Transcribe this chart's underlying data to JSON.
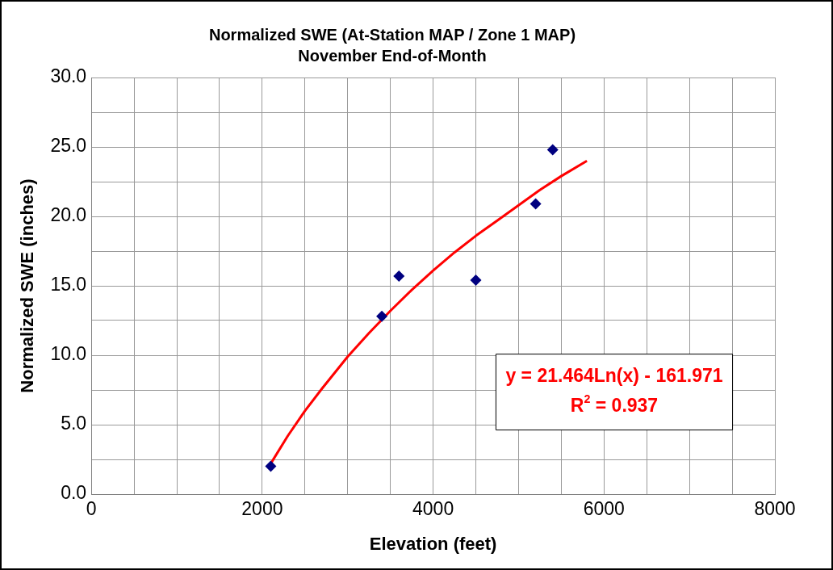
{
  "chart_data": {
    "type": "scatter",
    "title": "Normalized SWE (At-Station MAP / Zone 1 MAP)",
    "subtitle": "November End-of-Month",
    "xlabel": "Elevation (feet)",
    "ylabel": "Normalized SWE (inches)",
    "series": [
      {
        "color": "#000080",
        "marker": "diamond",
        "x": [
          2100,
          3400,
          3600,
          4500,
          5200,
          5400
        ],
        "values": [
          2.0,
          12.8,
          15.7,
          15.4,
          20.9,
          24.8
        ]
      },
      {
        "type": "line",
        "color": "#ff0000",
        "marker": "none",
        "line_style": "solid",
        "x": [
          2100,
          2300,
          2500,
          2700,
          3000,
          3250,
          3500,
          3750,
          4000,
          4250,
          4500,
          4750,
          5000,
          5250,
          5500,
          5800
        ],
        "values": [
          2.2,
          4.2,
          6.0,
          7.6,
          9.9,
          11.6,
          13.2,
          14.7,
          16.1,
          17.4,
          18.6,
          19.7,
          20.8,
          21.9,
          22.9,
          24.0
        ]
      }
    ],
    "xlim": [
      0,
      8000
    ],
    "ylim": [
      0,
      30
    ],
    "xticks": [
      0,
      {
        "value": 500,
        "label": null
      },
      {
        "value": 1000,
        "label": null
      },
      {
        "value": 1500,
        "label": null
      },
      2000,
      {
        "value": 2500,
        "label": null
      },
      {
        "value": 3000,
        "label": null
      },
      {
        "value": 3500,
        "label": null
      },
      4000,
      {
        "value": 4500,
        "label": null
      },
      {
        "value": 5000,
        "label": null
      },
      {
        "value": 5500,
        "label": null
      },
      6000,
      {
        "value": 6500,
        "label": null
      },
      {
        "value": 7000,
        "label": null
      },
      {
        "value": 7500,
        "label": null
      },
      8000
    ],
    "yticks": [
      {
        "value": 0,
        "label": "0.0"
      },
      {
        "value": 2.5,
        "label": null
      },
      {
        "value": 5,
        "label": "5.0"
      },
      {
        "value": 7.5,
        "label": null
      },
      {
        "value": 10,
        "label": "10.0"
      },
      {
        "value": 12.5,
        "label": null
      },
      {
        "value": 15,
        "label": "15.0"
      },
      {
        "value": 17.5,
        "label": null
      },
      {
        "value": 20,
        "label": "20.0"
      },
      {
        "value": 22.5,
        "label": null
      },
      {
        "value": 25,
        "label": "25.0"
      },
      {
        "value": 27.5,
        "label": null
      },
      {
        "value": 30,
        "label": "30.0"
      }
    ],
    "grid": true,
    "legend": false,
    "annotations": [
      "y = 21.464Ln(x) - 161.971",
      "R$^{2}$ = 0.937"
    ]
  }
}
